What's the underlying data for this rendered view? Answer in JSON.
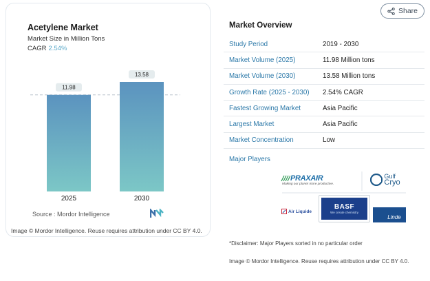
{
  "chart": {
    "title": "Acetylene Market",
    "subtitle": "Market Size in Million Tons",
    "cagr_label": "CAGR",
    "cagr_value": "2.54%",
    "source": "Source :  Mordor Intelligence",
    "credit": "Image © Mordor Intelligence. Reuse requires attribution under CC BY 4.0.",
    "logo_icon": "mordor-intelligence-logo-icon"
  },
  "chart_data": {
    "type": "bar",
    "categories": [
      "2025",
      "2030"
    ],
    "values": [
      11.98,
      13.58
    ],
    "value_labels": [
      "11.98",
      "13.58"
    ],
    "title": "Acetylene Market",
    "ylabel": "",
    "xlabel": "",
    "ylim": [
      0,
      13.58
    ],
    "grid": false,
    "colors": {
      "bar_top": "#5b93bf",
      "bar_bottom": "#7cc7c6",
      "label_bg": "#e5ecee"
    }
  },
  "share": {
    "label": "Share",
    "icon": "share-icon"
  },
  "overview": {
    "title": "Market Overview",
    "rows": [
      {
        "key": "Study Period",
        "value": "2019 - 2030"
      },
      {
        "key": "Market Volume (2025)",
        "value": "11.98 Million tons"
      },
      {
        "key": "Market Volume (2030)",
        "value": "13.58 Million tons"
      },
      {
        "key": "Growth Rate (2025 - 2030)",
        "value": "2.54% CAGR"
      },
      {
        "key": "Fastest Growing Market",
        "value": "Asia Pacific"
      },
      {
        "key": "Largest Market",
        "value": "Asia Pacific"
      },
      {
        "key": "Market Concentration",
        "value": "Low"
      }
    ]
  },
  "players": {
    "title": "Major Players",
    "logos": [
      "PRAXAIR",
      "Making our planet more productive.",
      "Gulf",
      "Cryo",
      "Air Liquide",
      "BASF",
      "We create chemistry",
      "Linde"
    ]
  },
  "disclaimer": "*Disclaimer: Major Players sorted in no particular order",
  "bottom_credit": "Image © Mordor Intelligence. Reuse requires attribution under CC BY 4.0."
}
